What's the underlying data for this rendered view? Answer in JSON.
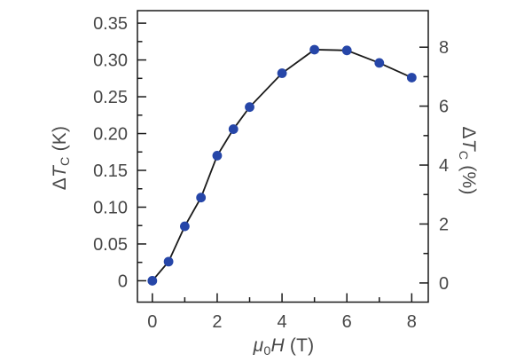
{
  "figure": {
    "background": "#ffffff",
    "description": "Single-panel scientific line plot of transition-temperature shift versus applied magnetic field, with kelvin scale on left axis and percent scale on right axis"
  },
  "labels": {
    "x": {
      "mu": "μ",
      "sub": "0",
      "H": "H",
      "suffix": " (T)"
    },
    "left": {
      "delta": "Δ",
      "T": "T",
      "sub": "C",
      "suffix": " (K)"
    },
    "right": {
      "delta": "Δ",
      "T": "T",
      "sub": "C",
      "suffix": " (%)"
    }
  },
  "chart_data": {
    "type": "line",
    "title": "",
    "xlabel": "μ₀H (T)",
    "ylabel_left": "ΔT_C (K)",
    "ylabel_right": "ΔT_C (%)",
    "series": [
      {
        "name": "ΔT_C vs applied field",
        "x": [
          0,
          0.5,
          1,
          1.5,
          2,
          2.5,
          3,
          4,
          5,
          6,
          7,
          8
        ],
        "y_K": [
          0.0,
          0.026,
          0.074,
          0.113,
          0.17,
          0.206,
          0.236,
          0.282,
          0.314,
          0.313,
          0.296,
          0.276
        ],
        "y_pct_estimated": [
          0.0,
          0.66,
          1.87,
          2.85,
          4.29,
          5.2,
          5.96,
          7.12,
          7.93,
          7.91,
          7.48,
          6.97
        ]
      }
    ],
    "marker": "filled-circle",
    "marker_color": "#2646a8",
    "line_color": "#1a1a1a",
    "grid": false,
    "legend": "none",
    "xlim": [
      -0.46,
      8.51
    ],
    "ylim_left": [
      -0.029,
      0.367
    ],
    "ylim_right": [
      -0.65,
      9.24
    ],
    "x_ticks_major": [
      0,
      2,
      4,
      6,
      8
    ],
    "x_tick_labels": [
      "0",
      "2",
      "4",
      "6",
      "8"
    ],
    "x_ticks_minor": [
      1,
      3,
      5,
      7
    ],
    "y_left_ticks_major": [
      0,
      0.05,
      0.1,
      0.15,
      0.2,
      0.25,
      0.3,
      0.35
    ],
    "y_left_tick_labels": [
      "0",
      "0.05",
      "0.10",
      "0.15",
      "0.20",
      "0.25",
      "0.30",
      "0.35"
    ],
    "y_left_ticks_minor": [
      0.025,
      0.075,
      0.125,
      0.175,
      0.225,
      0.275,
      0.325
    ],
    "y_right_ticks_major": [
      0,
      2,
      4,
      6,
      8
    ],
    "y_right_tick_labels": [
      "0",
      "2",
      "4",
      "6",
      "8"
    ],
    "y_right_ticks_minor": [
      1,
      3,
      5,
      7
    ],
    "tick_direction": "in",
    "axis_color": "#1a1a1a",
    "tick_label_color": "#474747"
  }
}
